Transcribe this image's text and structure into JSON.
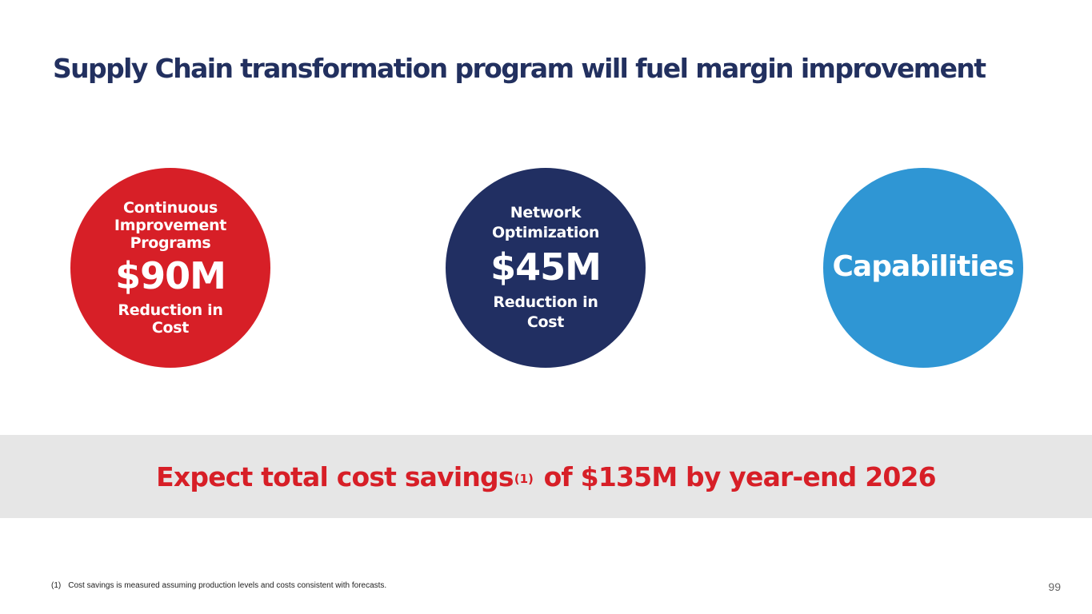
{
  "slide": {
    "title": "Supply Chain transformation program will fuel margin improvement",
    "circles": [
      {
        "top_label": "Continuous Improvement Programs",
        "amount": "$90M",
        "bottom_label": "Reduction in Cost",
        "color": "#d71f27"
      },
      {
        "top_label": "Network Optimization",
        "amount": "$45M",
        "bottom_label": "Reduction in Cost",
        "color": "#212f62"
      },
      {
        "label": "Capabilities",
        "color": "#2f96d4"
      }
    ],
    "banner": {
      "text_before": "Expect total cost savings",
      "superscript": "(1)",
      "text_after": " of $135M by year-end 2026",
      "background": "#e6e6e6",
      "text_color": "#d71f27"
    },
    "footnote": {
      "marker": "(1)",
      "text": "Cost savings is measured assuming production levels and costs consistent with forecasts."
    },
    "page_number": "99"
  }
}
